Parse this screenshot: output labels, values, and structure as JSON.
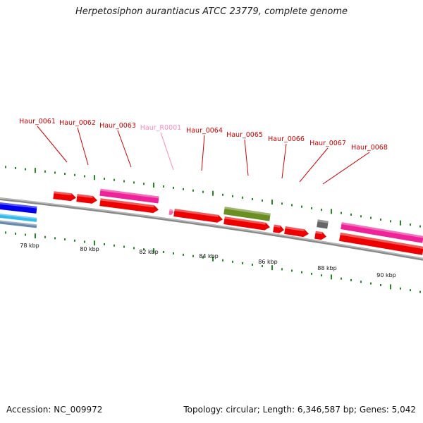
{
  "header": {
    "title": "Herpetosiphon aurantiacus ATCC 23779, complete genome"
  },
  "footer": {
    "accession": "Accession: NC_009972",
    "summary": "Topology: circular; Length: 6,346,587 bp; Genes: 5,042"
  },
  "colors": {
    "cds": "#ee0000",
    "trna": "#ff66aa",
    "feature_magenta": "#ee2299",
    "feature_olive": "#6b8e23",
    "feature_gray": "#666666",
    "feature_blue": "#0000ee",
    "feature_lightblue": "#33bbee",
    "feature_steel": "#6688aa",
    "backbone": "#888888",
    "tick": "#228822",
    "label_red": "#cc0000",
    "label_pink": "#ff88bb"
  },
  "scale": {
    "ticks_kbp": [
      "78 kbp",
      "80 kbp",
      "82 kbp",
      "84 kbp",
      "86 kbp",
      "88 kbp",
      "90 kbp"
    ]
  },
  "gene_labels": [
    {
      "name": "Haur_0061",
      "kind": "cds"
    },
    {
      "name": "Haur_0062",
      "kind": "cds"
    },
    {
      "name": "Haur_0063",
      "kind": "cds"
    },
    {
      "name": "Haur_R0001",
      "kind": "trna"
    },
    {
      "name": "Haur_0064",
      "kind": "cds"
    },
    {
      "name": "Haur_0065",
      "kind": "cds"
    },
    {
      "name": "Haur_0066",
      "kind": "cds"
    },
    {
      "name": "Haur_0067",
      "kind": "cds"
    },
    {
      "name": "Haur_0068",
      "kind": "cds"
    }
  ]
}
